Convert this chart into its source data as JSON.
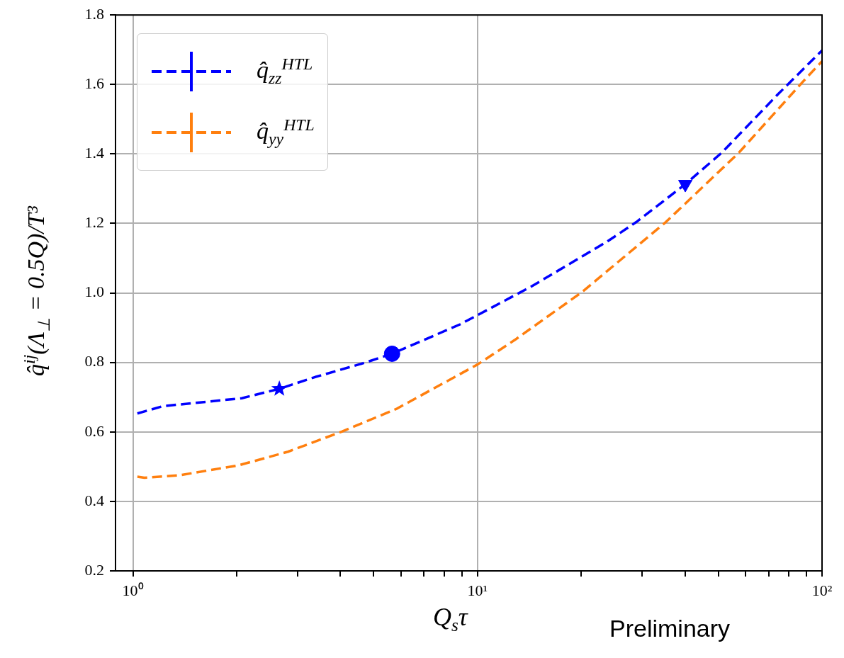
{
  "chart_data": {
    "type": "line",
    "xlabel": "Q$_{s}$τ",
    "ylabel": "q̂$^{ij}$(Λ$_{⊥}$ = 0.5Q)/T³",
    "annotations": [
      "Preliminary"
    ],
    "log": "x",
    "grid": true,
    "legend": "top left",
    "line_style": "dashed",
    "marker": "none",
    "xlim": [
      0.89,
      100
    ],
    "xticks": [
      {
        "value": 1,
        "label": "10⁰"
      },
      {
        "value": 2,
        "label": null
      },
      {
        "value": 3,
        "label": null
      },
      {
        "value": 4,
        "label": null
      },
      {
        "value": 5,
        "label": null
      },
      {
        "value": 6,
        "label": null
      },
      {
        "value": 7,
        "label": null
      },
      {
        "value": 8,
        "label": null
      },
      {
        "value": 9,
        "label": null
      },
      {
        "value": 10,
        "label": "10¹"
      },
      {
        "value": 20,
        "label": null
      },
      {
        "value": 30,
        "label": null
      },
      {
        "value": 40,
        "label": null
      },
      {
        "value": 50,
        "label": null
      },
      {
        "value": 60,
        "label": null
      },
      {
        "value": 70,
        "label": null
      },
      {
        "value": 80,
        "label": null
      },
      {
        "value": 90,
        "label": null
      },
      {
        "value": 100,
        "label": "10²"
      }
    ],
    "ylim": [
      0.2,
      1.8
    ],
    "yticks": [
      0.2,
      0.4,
      0.6,
      0.8,
      {
        "value": 1,
        "label": "1.0"
      },
      1.2,
      1.4,
      1.6,
      1.8
    ],
    "series": [
      {
        "name": "q̂$_{zz}$$^{HTL}$",
        "color": "#0000ff",
        "x": [
          1.03,
          1.22,
          2.07,
          2.66,
          3.38,
          4.67,
          5.65,
          8.92,
          14.3,
          23.8,
          28.9,
          40.1,
          51.2,
          74.5,
          100
        ],
        "values": [
          0.653,
          0.674,
          0.697,
          0.724,
          0.758,
          0.798,
          0.825,
          0.91,
          1.018,
          1.148,
          1.204,
          1.313,
          1.404,
          1.572,
          1.698
        ]
      },
      {
        "name": "q̂$_{yy}$$^{HTL}$",
        "color": "#ff7f0e",
        "x": [
          1.03,
          1.08,
          1.36,
          2.03,
          2.82,
          4.04,
          5.81,
          10,
          12.8,
          20.2,
          35.2,
          57.4,
          87.8,
          100
        ],
        "values": [
          0.471,
          0.468,
          0.475,
          0.504,
          0.543,
          0.601,
          0.666,
          0.794,
          0.864,
          1.004,
          1.204,
          1.404,
          1.607,
          1.667
        ]
      },
      {
        "type": "scatter",
        "marker": "star",
        "color": "#0000ff",
        "x": [
          2.66
        ],
        "values": [
          0.724
        ]
      },
      {
        "type": "scatter",
        "marker": "circle",
        "color": "#0000ff",
        "x": [
          5.65
        ],
        "values": [
          0.825
        ]
      },
      {
        "type": "scatter",
        "marker": "triangle",
        "color": "#0000ff",
        "x": [
          40.1
        ],
        "values": [
          1.313
        ]
      }
    ]
  }
}
